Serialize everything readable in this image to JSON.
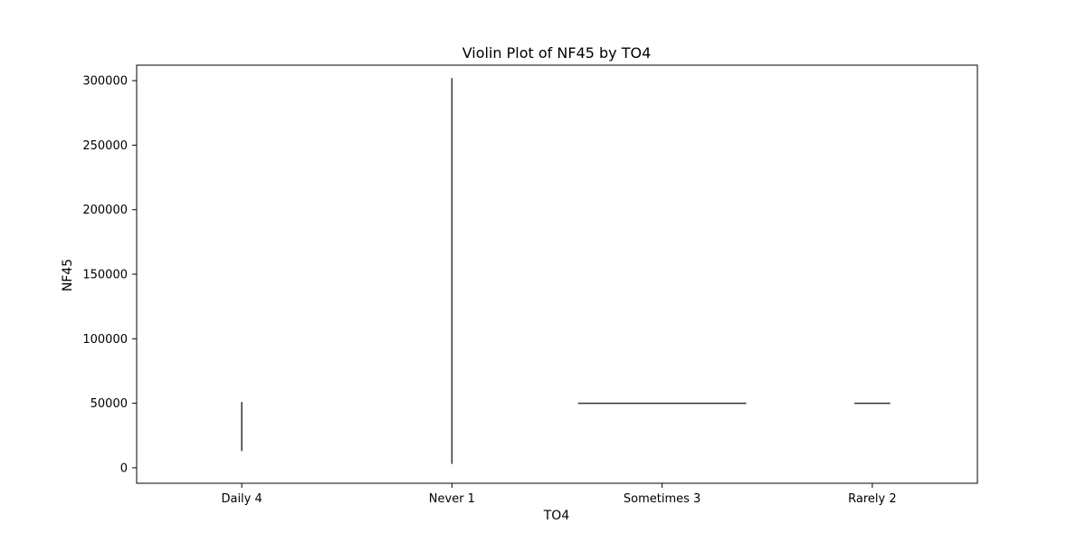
{
  "chart_data": {
    "type": "violin",
    "title": "Violin Plot of NF45 by TO4",
    "xlabel": "TO4",
    "ylabel": "NF45",
    "categories": [
      "Daily 4",
      "Never 1",
      "Sometimes 3",
      "Rarely 2"
    ],
    "yticks": [
      0,
      50000,
      100000,
      150000,
      200000,
      250000,
      300000
    ],
    "ylim": [
      -12000,
      312000
    ],
    "violins": [
      {
        "category": "Daily 4",
        "shape": "vertical-line",
        "y_min": 13000,
        "y_max": 51000,
        "width_fraction": 0
      },
      {
        "category": "Never 1",
        "shape": "vertical-line",
        "y_min": 3000,
        "y_max": 302000,
        "width_fraction": 0
      },
      {
        "category": "Sometimes 3",
        "shape": "horizontal-line",
        "y_min": 50000,
        "y_max": 50000,
        "width_fraction": 0.8
      },
      {
        "category": "Rarely 2",
        "shape": "horizontal-line",
        "y_min": 50000,
        "y_max": 50000,
        "width_fraction": 0.17
      }
    ],
    "grid": false,
    "legend": "none",
    "colors": {
      "line": "#333333",
      "axis": "#000000",
      "background": "#ffffff"
    }
  }
}
